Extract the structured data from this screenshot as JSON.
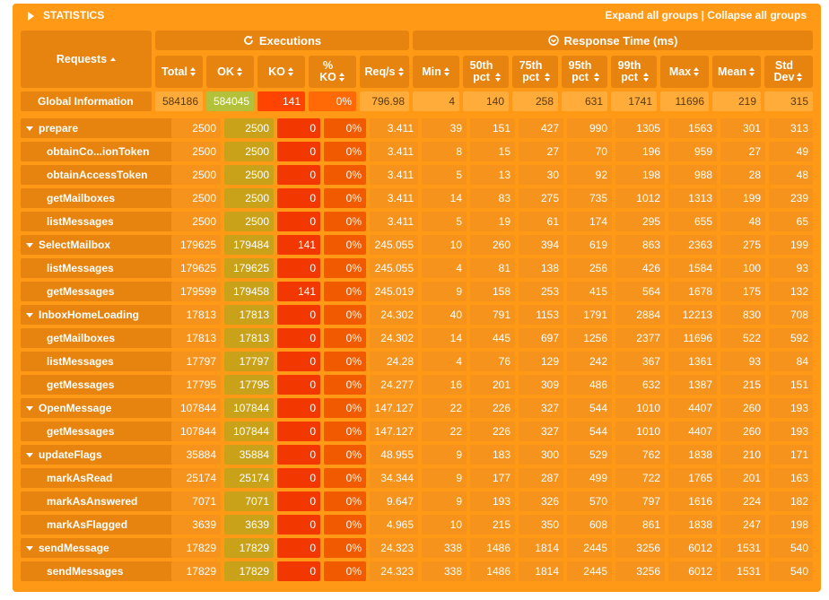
{
  "header": {
    "title": "STATISTICS",
    "expand_label": "Expand all groups",
    "separator": " | ",
    "collapse_label": "Collapse all groups"
  },
  "groups": {
    "executions": "Executions",
    "response_time": "Response Time (ms)"
  },
  "columns": {
    "requests": "Requests",
    "total": "Total",
    "ok": "OK",
    "ko": "KO",
    "ko_pct_line1": "%",
    "ko_pct_line2": "KO",
    "reqs": "Req/s",
    "min": "Min",
    "p50_line1": "50th",
    "p50_line2": "pct",
    "p75_line1": "75th",
    "p75_line2": "pct",
    "p95_line1": "95th",
    "p95_line2": "pct",
    "p99_line1": "99th",
    "p99_line2": "pct",
    "max": "Max",
    "mean": "Mean",
    "std_line1": "Std",
    "std_line2": "Dev"
  },
  "global": [
    "Global Information",
    "584186",
    "584045",
    "141",
    "0%",
    "796.98",
    "4",
    "140",
    "258",
    "631",
    "1741",
    "11696",
    "219",
    "315"
  ],
  "rows": [
    {
      "level": "group",
      "cells": [
        "prepare",
        "2500",
        "2500",
        "0",
        "0%",
        "3.411",
        "39",
        "151",
        "427",
        "990",
        "1305",
        "1563",
        "301",
        "313"
      ]
    },
    {
      "level": "child",
      "cells": [
        "obtainCo...ionToken",
        "2500",
        "2500",
        "0",
        "0%",
        "3.411",
        "8",
        "15",
        "27",
        "70",
        "196",
        "959",
        "27",
        "49"
      ]
    },
    {
      "level": "child",
      "cells": [
        "obtainAccessToken",
        "2500",
        "2500",
        "0",
        "0%",
        "3.411",
        "5",
        "13",
        "30",
        "92",
        "198",
        "988",
        "28",
        "48"
      ]
    },
    {
      "level": "child",
      "cells": [
        "getMailboxes",
        "2500",
        "2500",
        "0",
        "0%",
        "3.411",
        "14",
        "83",
        "275",
        "735",
        "1012",
        "1313",
        "199",
        "239"
      ]
    },
    {
      "level": "child",
      "cells": [
        "listMessages",
        "2500",
        "2500",
        "0",
        "0%",
        "3.411",
        "5",
        "19",
        "61",
        "174",
        "295",
        "655",
        "48",
        "65"
      ]
    },
    {
      "level": "group",
      "cells": [
        "SelectMailbox",
        "179625",
        "179484",
        "141",
        "0%",
        "245.055",
        "10",
        "260",
        "394",
        "619",
        "863",
        "2363",
        "275",
        "199"
      ]
    },
    {
      "level": "child",
      "cells": [
        "listMessages",
        "179625",
        "179625",
        "0",
        "0%",
        "245.055",
        "4",
        "81",
        "138",
        "256",
        "426",
        "1584",
        "100",
        "93"
      ]
    },
    {
      "level": "child",
      "cells": [
        "getMessages",
        "179599",
        "179458",
        "141",
        "0%",
        "245.019",
        "9",
        "158",
        "253",
        "415",
        "564",
        "1678",
        "175",
        "132"
      ]
    },
    {
      "level": "group",
      "cells": [
        "InboxHomeLoading",
        "17813",
        "17813",
        "0",
        "0%",
        "24.302",
        "40",
        "791",
        "1153",
        "1791",
        "2884",
        "12213",
        "830",
        "708"
      ]
    },
    {
      "level": "child",
      "cells": [
        "getMailboxes",
        "17813",
        "17813",
        "0",
        "0%",
        "24.302",
        "14",
        "445",
        "697",
        "1256",
        "2377",
        "11696",
        "522",
        "592"
      ]
    },
    {
      "level": "child",
      "cells": [
        "listMessages",
        "17797",
        "17797",
        "0",
        "0%",
        "24.28",
        "4",
        "76",
        "129",
        "242",
        "367",
        "1361",
        "93",
        "84"
      ]
    },
    {
      "level": "child",
      "cells": [
        "getMessages",
        "17795",
        "17795",
        "0",
        "0%",
        "24.277",
        "16",
        "201",
        "309",
        "486",
        "632",
        "1387",
        "215",
        "151"
      ]
    },
    {
      "level": "group",
      "cells": [
        "OpenMessage",
        "107844",
        "107844",
        "0",
        "0%",
        "147.127",
        "22",
        "226",
        "327",
        "544",
        "1010",
        "4407",
        "260",
        "193"
      ]
    },
    {
      "level": "child",
      "cells": [
        "getMessages",
        "107844",
        "107844",
        "0",
        "0%",
        "147.127",
        "22",
        "226",
        "327",
        "544",
        "1010",
        "4407",
        "260",
        "193"
      ]
    },
    {
      "level": "group",
      "cells": [
        "updateFlags",
        "35884",
        "35884",
        "0",
        "0%",
        "48.955",
        "9",
        "183",
        "300",
        "529",
        "762",
        "1838",
        "210",
        "171"
      ]
    },
    {
      "level": "child",
      "cells": [
        "markAsRead",
        "25174",
        "25174",
        "0",
        "0%",
        "34.344",
        "9",
        "177",
        "287",
        "499",
        "722",
        "1765",
        "201",
        "163"
      ]
    },
    {
      "level": "child",
      "cells": [
        "markAsAnswered",
        "7071",
        "7071",
        "0",
        "0%",
        "9.647",
        "9",
        "193",
        "326",
        "570",
        "797",
        "1616",
        "224",
        "182"
      ]
    },
    {
      "level": "child",
      "cells": [
        "markAsFlagged",
        "3639",
        "3639",
        "0",
        "0%",
        "4.965",
        "10",
        "215",
        "350",
        "608",
        "861",
        "1838",
        "247",
        "198"
      ]
    },
    {
      "level": "group",
      "cells": [
        "sendMessage",
        "17829",
        "17829",
        "0",
        "0%",
        "24.323",
        "338",
        "1486",
        "1814",
        "2445",
        "3256",
        "6012",
        "1531",
        "540"
      ]
    },
    {
      "level": "child",
      "cells": [
        "sendMessages",
        "17829",
        "17829",
        "0",
        "0%",
        "24.323",
        "338",
        "1486",
        "1814",
        "2445",
        "3256",
        "6012",
        "1531",
        "540"
      ]
    }
  ]
}
